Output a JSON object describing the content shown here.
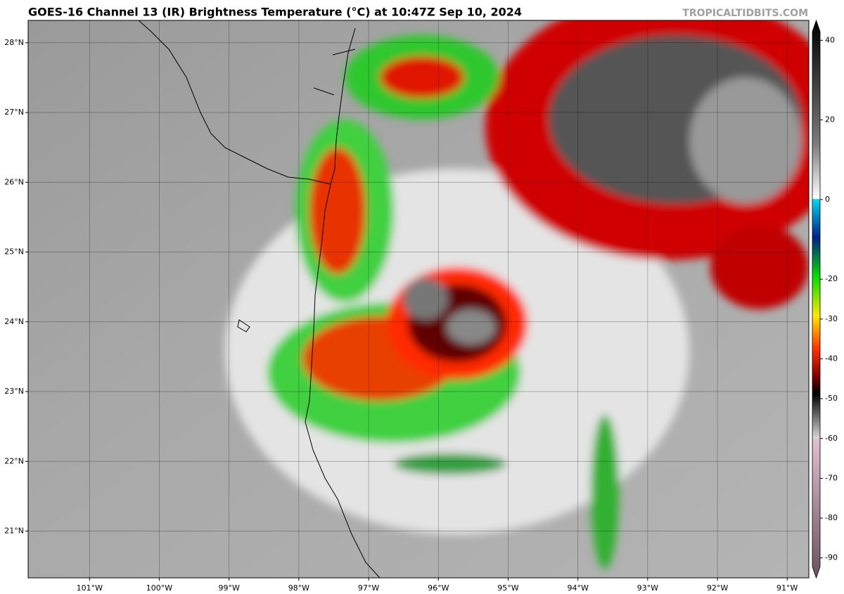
{
  "header": {
    "title": "GOES-16 Channel 13 (IR) Brightness Temperature (°C) at 10:47Z Sep 10, 2024",
    "watermark": "TROPICALTIDBITS.COM"
  },
  "map": {
    "lonlim": [
      -101.88,
      -90.69
    ],
    "latlim": [
      20.33,
      28.32
    ],
    "lat_ticks": [
      {
        "value": 21,
        "label": "21°N"
      },
      {
        "value": 22,
        "label": "22°N"
      },
      {
        "value": 23,
        "label": "23°N"
      },
      {
        "value": 24,
        "label": "24°N"
      },
      {
        "value": 25,
        "label": "25°N"
      },
      {
        "value": 26,
        "label": "26°N"
      },
      {
        "value": 27,
        "label": "27°N"
      },
      {
        "value": 28,
        "label": "28°N"
      }
    ],
    "lon_ticks": [
      {
        "value": -101,
        "label": "101°W"
      },
      {
        "value": -100,
        "label": "100°W"
      },
      {
        "value": -99,
        "label": "99°W"
      },
      {
        "value": -98,
        "label": "98°W"
      },
      {
        "value": -97,
        "label": "97°W"
      },
      {
        "value": -96,
        "label": "96°W"
      },
      {
        "value": -95,
        "label": "95°W"
      },
      {
        "value": -94,
        "label": "94°W"
      },
      {
        "value": -93,
        "label": "93°W"
      },
      {
        "value": -92,
        "label": "92°W"
      },
      {
        "value": -91,
        "label": "91°W"
      }
    ]
  },
  "colorbar": {
    "clim": [
      -95,
      45
    ],
    "ticks": [
      40,
      20,
      0,
      -20,
      -30,
      -40,
      -50,
      -60,
      -70,
      -80,
      -90
    ]
  }
}
